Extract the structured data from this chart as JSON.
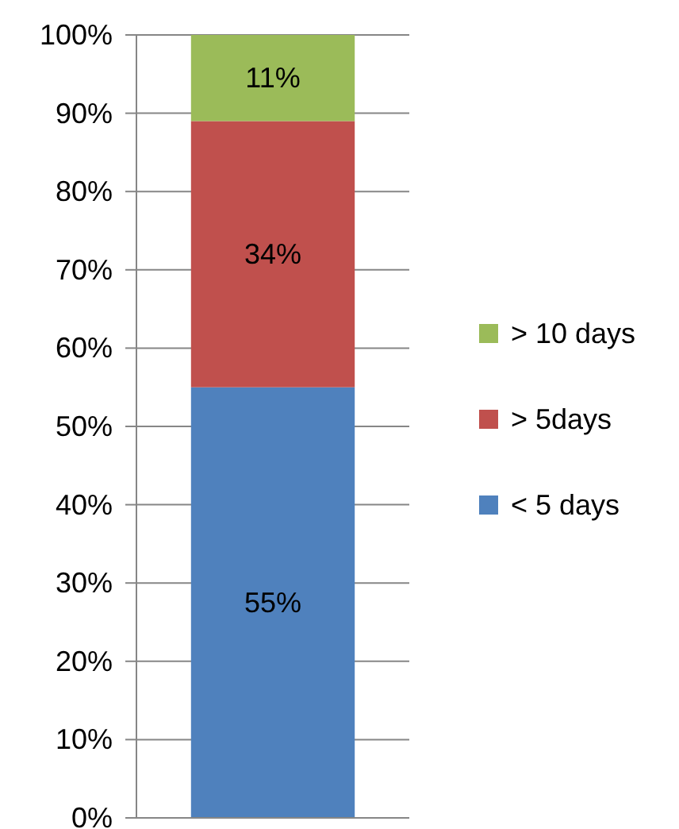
{
  "chart_data": {
    "type": "bar",
    "stacked": true,
    "categories": [
      null
    ],
    "series": [
      {
        "name": "< 5 days",
        "color": "#4f81bd",
        "values": [
          55
        ],
        "value_labels": [
          "55%"
        ]
      },
      {
        "name": "> 5days",
        "color": "#c0504d",
        "values": [
          34
        ],
        "value_labels": [
          "34%"
        ]
      },
      {
        "name": "> 10 days",
        "color": "#9bbb59",
        "values": [
          11
        ],
        "value_labels": [
          "11%"
        ]
      }
    ],
    "ylim": [
      0,
      100
    ],
    "yticks": [
      {
        "value": 0,
        "label": "0%"
      },
      {
        "value": 10,
        "label": "10%"
      },
      {
        "value": 20,
        "label": "20%"
      },
      {
        "value": 30,
        "label": "30%"
      },
      {
        "value": 40,
        "label": "40%"
      },
      {
        "value": 50,
        "label": "50%"
      },
      {
        "value": 60,
        "label": "60%"
      },
      {
        "value": 70,
        "label": "70%"
      },
      {
        "value": 80,
        "label": "80%"
      },
      {
        "value": 90,
        "label": "90%"
      },
      {
        "value": 100,
        "label": "100%"
      }
    ],
    "grid": "y",
    "legend": "right"
  }
}
